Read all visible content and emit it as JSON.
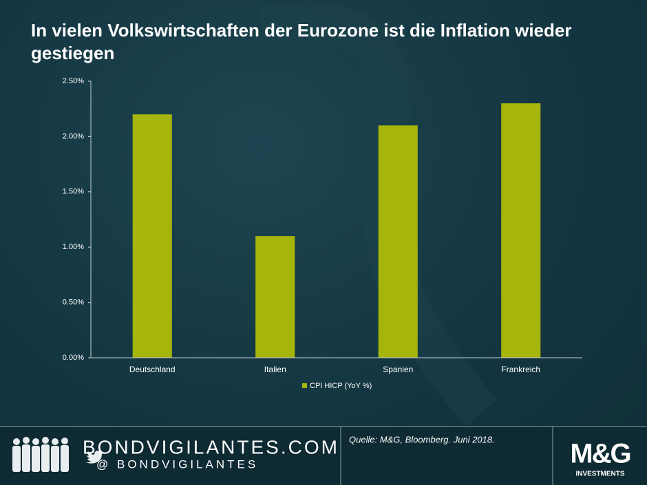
{
  "chart_data": {
    "type": "bar",
    "title": "In vielen Volkswirtschaften der Eurozone ist die Inflation wieder gestiegen",
    "categories": [
      "Deutschland",
      "Italien",
      "Spanien",
      "Frankreich"
    ],
    "series": [
      {
        "name": "CPI HICP (YoY %)",
        "color": "#a6b50a",
        "values": [
          2.2,
          1.1,
          2.1,
          2.3
        ]
      }
    ],
    "ylim": [
      0,
      2.5
    ],
    "yticks": [
      {
        "value": 0,
        "label": "0.00%"
      },
      {
        "value": 0.5,
        "label": "0.50%"
      },
      {
        "value": 1,
        "label": "1.00%"
      },
      {
        "value": 1.5,
        "label": "1.50%"
      },
      {
        "value": 2,
        "label": "2.00%"
      },
      {
        "value": 2.5,
        "label": "2.50%"
      }
    ],
    "grid": false,
    "legend": "bottom"
  },
  "footer": {
    "site": "BONDVIGILANTES.COM",
    "handle": "@ BONDVIGILANTES",
    "source": "Quelle: M&G, Bloomberg. Juni 2018."
  },
  "logo": {
    "brand": "M&G",
    "sub": "INVESTMENTS"
  }
}
